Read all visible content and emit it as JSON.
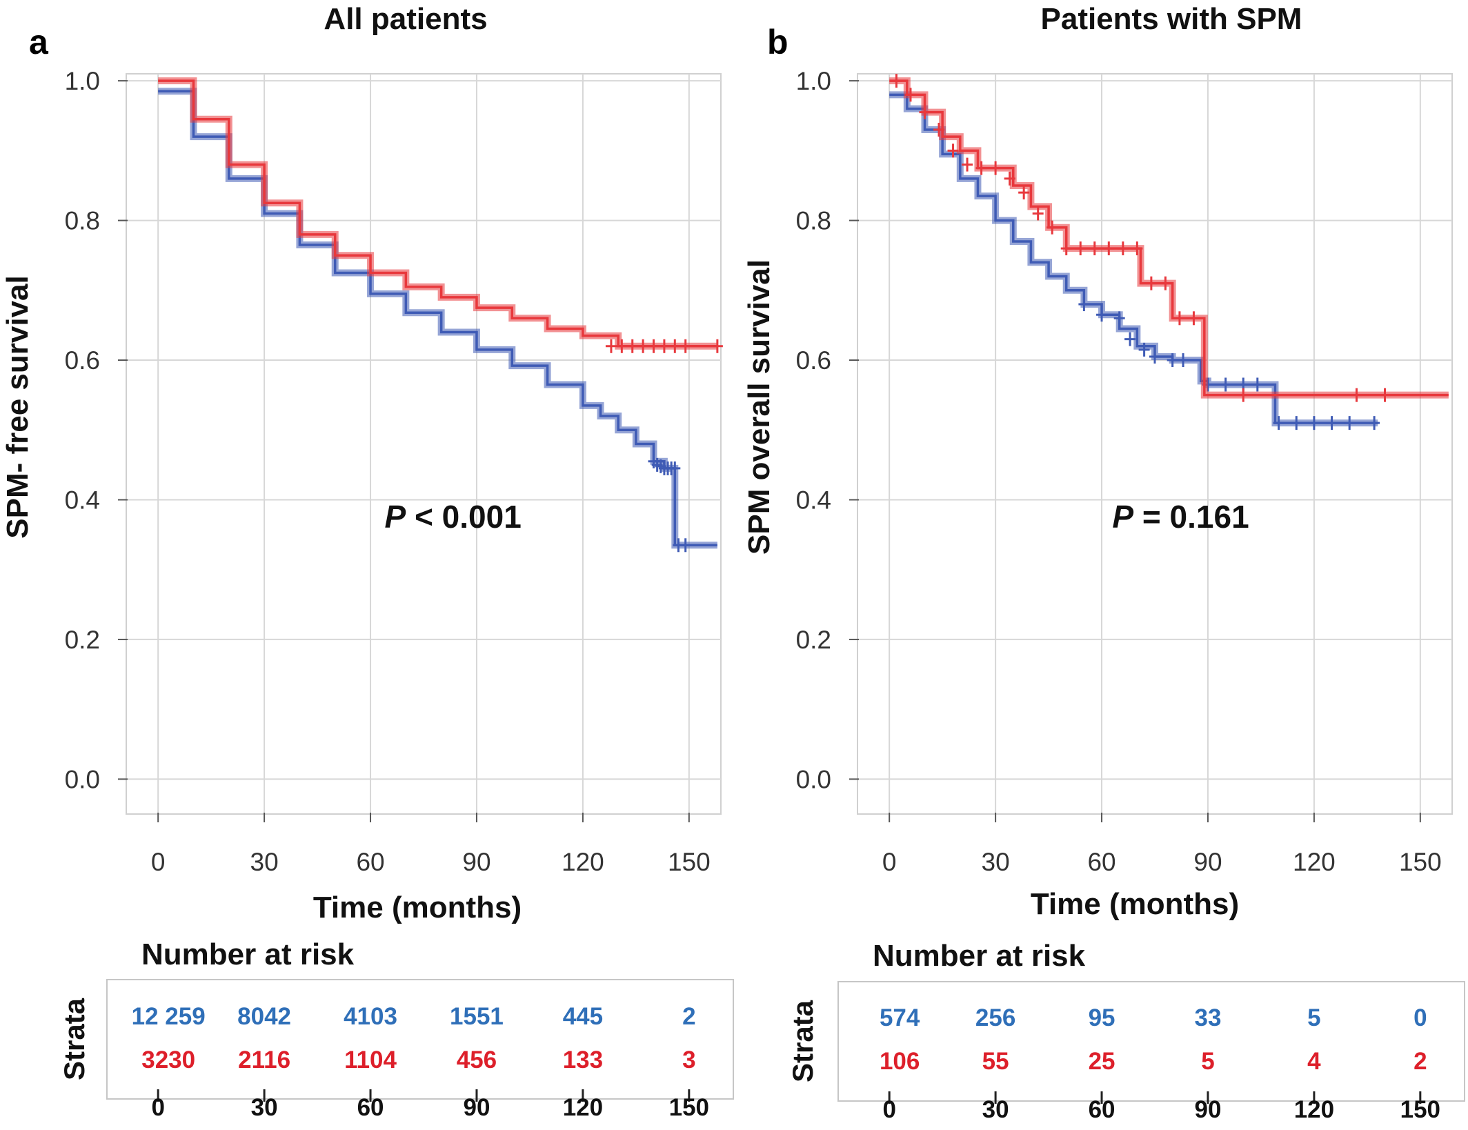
{
  "figure": {
    "colors": {
      "blue": "#3f5bb5",
      "red": "#e8383d",
      "risk_blue": "#2f6fb8",
      "risk_red": "#dd1f2a"
    },
    "risk_table_title": "Number at risk",
    "risk_table_strata_label": "Strata"
  },
  "chart_data": [
    {
      "type": "line",
      "panel_label": "a",
      "title": "All patients",
      "xlabel": "Time (months)",
      "ylabel": "SPM- free survival",
      "xticks": [
        0,
        30,
        60,
        90,
        120,
        150
      ],
      "yticks": [
        "0.0",
        "0.2",
        "0.4",
        "0.6",
        "0.8",
        "1.0"
      ],
      "xlim": [
        -9,
        159
      ],
      "ylim": [
        -0.05,
        1.01
      ],
      "grid": true,
      "annotation": {
        "italic": "P",
        "rest": " < 0.001",
        "x": 64,
        "y": 0.36
      },
      "series": [
        {
          "color_key": "blue",
          "x": [
            0,
            10,
            20,
            30,
            40,
            50,
            60,
            70,
            80,
            90,
            100,
            110,
            120,
            125,
            130,
            135,
            140,
            143,
            145,
            146,
            146,
            149,
            158
          ],
          "y": [
            0.985,
            0.92,
            0.86,
            0.81,
            0.765,
            0.725,
            0.695,
            0.668,
            0.64,
            0.615,
            0.592,
            0.565,
            0.535,
            0.52,
            0.5,
            0.48,
            0.455,
            0.445,
            0.445,
            0.445,
            0.335,
            0.335,
            0.335
          ],
          "censor_x": [
            140,
            141,
            142,
            143,
            144,
            145,
            146,
            147,
            149
          ],
          "censor_y": [
            0.455,
            0.45,
            0.448,
            0.445,
            0.445,
            0.445,
            0.445,
            0.335,
            0.335
          ]
        },
        {
          "color_key": "red",
          "x": [
            0,
            10,
            20,
            30,
            40,
            50,
            60,
            70,
            80,
            90,
            100,
            110,
            120,
            130,
            140,
            150,
            158
          ],
          "y": [
            1.0,
            0.945,
            0.88,
            0.825,
            0.78,
            0.75,
            0.725,
            0.705,
            0.69,
            0.675,
            0.66,
            0.645,
            0.635,
            0.62,
            0.62,
            0.62,
            0.62
          ],
          "censor_x": [
            128,
            131,
            134,
            137,
            140,
            143,
            146,
            149,
            158
          ],
          "censor_y": [
            0.62,
            0.62,
            0.62,
            0.62,
            0.62,
            0.62,
            0.62,
            0.62,
            0.62
          ]
        }
      ],
      "risk_table": {
        "times": [
          "0",
          "30",
          "60",
          "90",
          "120",
          "150"
        ],
        "rows": [
          {
            "color_key": "risk_blue",
            "values": [
              "12 259",
              "8042",
              "4103",
              "1551",
              "445",
              "2"
            ]
          },
          {
            "color_key": "risk_red",
            "values": [
              "3230",
              "2116",
              "1104",
              "456",
              "133",
              "3"
            ]
          }
        ]
      }
    },
    {
      "type": "line",
      "panel_label": "b",
      "title": "Patients with SPM",
      "xlabel": "Time (months)",
      "ylabel": "SPM overall survival",
      "xticks": [
        0,
        30,
        60,
        90,
        120,
        150
      ],
      "yticks": [
        "0.0",
        "0.2",
        "0.4",
        "0.6",
        "0.8",
        "1.0"
      ],
      "xlim": [
        -9,
        159
      ],
      "ylim": [
        -0.05,
        1.01
      ],
      "grid": true,
      "annotation": {
        "italic": "P",
        "rest": " = 0.161",
        "x": 63,
        "y": 0.36
      },
      "series": [
        {
          "color_key": "blue",
          "x": [
            0,
            5,
            10,
            15,
            20,
            25,
            30,
            35,
            40,
            45,
            50,
            55,
            60,
            65,
            70,
            75,
            80,
            85,
            88,
            90,
            100,
            108,
            109,
            115,
            125,
            138
          ],
          "y": [
            0.98,
            0.96,
            0.93,
            0.895,
            0.86,
            0.835,
            0.8,
            0.77,
            0.74,
            0.72,
            0.7,
            0.68,
            0.665,
            0.645,
            0.62,
            0.605,
            0.6,
            0.6,
            0.57,
            0.565,
            0.565,
            0.565,
            0.51,
            0.51,
            0.51,
            0.51
          ],
          "censor_x": [
            55,
            60,
            65,
            68,
            72,
            75,
            80,
            83,
            90,
            95,
            100,
            104,
            110,
            115,
            120,
            125,
            130,
            137
          ],
          "censor_y": [
            0.68,
            0.665,
            0.66,
            0.63,
            0.615,
            0.605,
            0.6,
            0.6,
            0.565,
            0.565,
            0.565,
            0.565,
            0.51,
            0.51,
            0.51,
            0.51,
            0.51,
            0.51
          ]
        },
        {
          "color_key": "red",
          "x": [
            0,
            5,
            10,
            15,
            20,
            25,
            30,
            35,
            40,
            45,
            50,
            60,
            70,
            71,
            78,
            80,
            88,
            89,
            100,
            120,
            140,
            158
          ],
          "y": [
            1.0,
            0.98,
            0.955,
            0.92,
            0.9,
            0.875,
            0.875,
            0.85,
            0.82,
            0.79,
            0.76,
            0.76,
            0.76,
            0.71,
            0.71,
            0.66,
            0.66,
            0.55,
            0.55,
            0.55,
            0.55,
            0.55
          ],
          "censor_x": [
            2,
            6,
            10,
            14,
            18,
            22,
            26,
            30,
            34,
            38,
            42,
            46,
            50,
            54,
            58,
            62,
            66,
            70,
            74,
            78,
            82,
            86,
            100,
            132,
            140
          ],
          "censor_y": [
            1.0,
            0.98,
            0.955,
            0.93,
            0.9,
            0.88,
            0.875,
            0.875,
            0.86,
            0.84,
            0.81,
            0.79,
            0.76,
            0.76,
            0.76,
            0.76,
            0.76,
            0.76,
            0.71,
            0.71,
            0.66,
            0.66,
            0.55,
            0.55,
            0.55
          ]
        }
      ],
      "risk_table": {
        "times": [
          "0",
          "30",
          "60",
          "90",
          "120",
          "150"
        ],
        "rows": [
          {
            "color_key": "risk_blue",
            "values": [
              "574",
              "256",
              "95",
              "33",
              "5",
              "0"
            ]
          },
          {
            "color_key": "risk_red",
            "values": [
              "106",
              "55",
              "25",
              "5",
              "4",
              "2"
            ]
          }
        ]
      }
    }
  ]
}
